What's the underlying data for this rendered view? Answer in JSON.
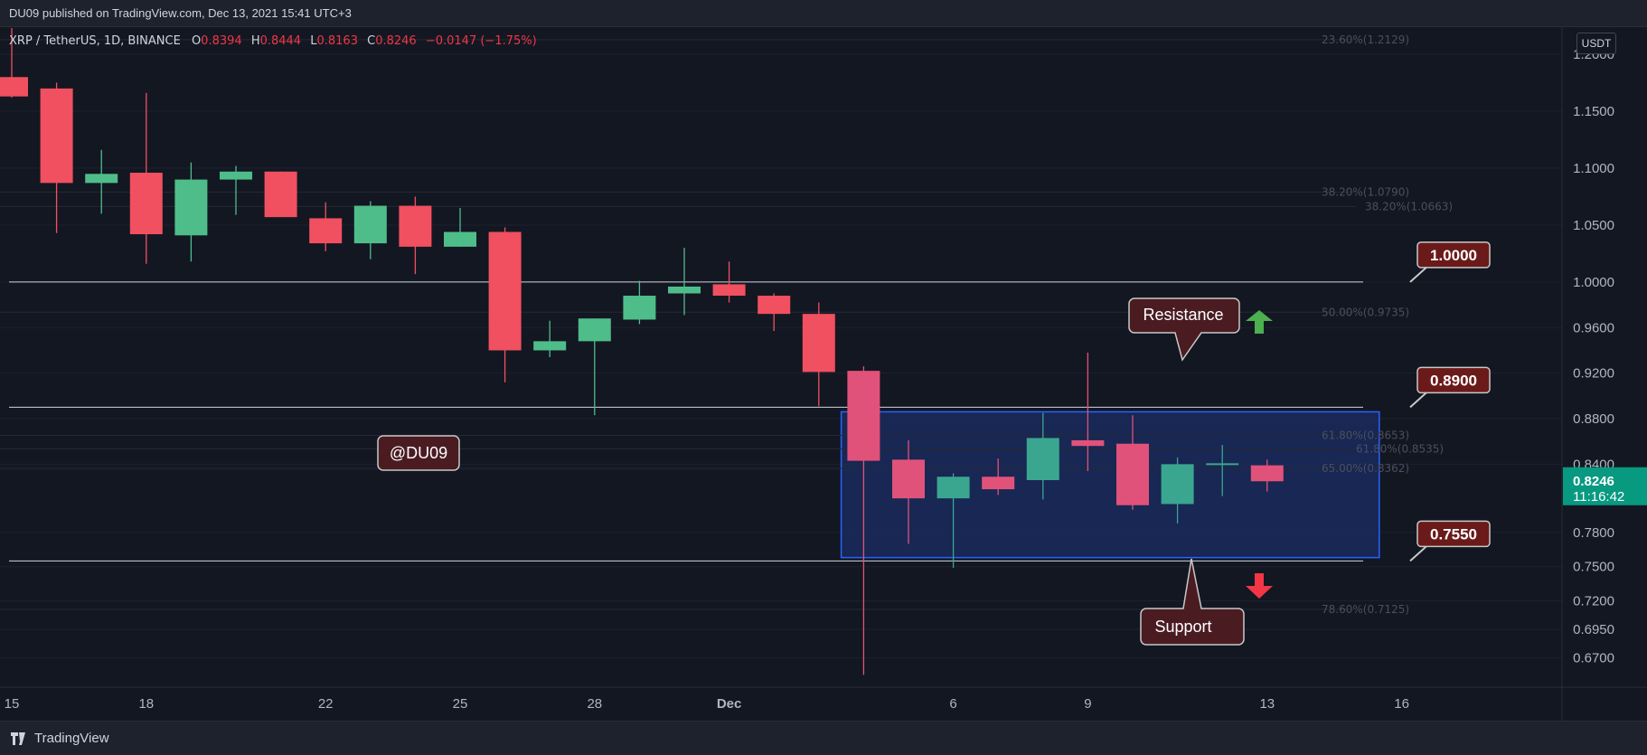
{
  "topbar": {
    "published": "DU09 published on TradingView.com, Dec 13, 2021 15:41 UTC+3"
  },
  "legend": {
    "symbol": "XRP / TetherUS, 1D, BINANCE",
    "o_label": "O",
    "o": "0.8394",
    "h_label": "H",
    "h": "0.8444",
    "l_label": "L",
    "l": "0.8163",
    "c_label": "C",
    "c": "0.8246",
    "change": "−0.0147 (−1.75%)"
  },
  "currency": "USDT",
  "footer": {
    "brand": "TradingView"
  },
  "last_price": {
    "price": "0.8246",
    "countdown": "11:16:42"
  },
  "watermark": "@DU09",
  "annotations": {
    "resistance": "Resistance",
    "support": "Support"
  },
  "chart_data": {
    "type": "candlestick",
    "ylim": [
      0.655,
      1.2
    ],
    "y_ticks": [
      "0.6700",
      "0.6950",
      "0.7200",
      "0.7500",
      "0.7800",
      "0.8400",
      "0.8800",
      "0.9200",
      "0.9600",
      "1.0000",
      "1.0500",
      "1.1000",
      "1.1500",
      "1.2000"
    ],
    "x_ticks": [
      {
        "label": "15",
        "idx": 0
      },
      {
        "label": "18",
        "idx": 3
      },
      {
        "label": "22",
        "idx": 7
      },
      {
        "label": "25",
        "idx": 10
      },
      {
        "label": "28",
        "idx": 13
      },
      {
        "label": "Dec",
        "idx": 16
      },
      {
        "label": "6",
        "idx": 21
      },
      {
        "label": "9",
        "idx": 24
      },
      {
        "label": "13",
        "idx": 28
      },
      {
        "label": "16",
        "idx": 31
      }
    ],
    "candles": [
      {
        "o": 1.18,
        "h": 1.223,
        "l": 1.162,
        "c": 1.163
      },
      {
        "o": 1.17,
        "h": 1.175,
        "l": 1.043,
        "c": 1.087
      },
      {
        "o": 1.087,
        "h": 1.116,
        "l": 1.06,
        "c": 1.095
      },
      {
        "o": 1.096,
        "h": 1.166,
        "l": 1.016,
        "c": 1.042
      },
      {
        "o": 1.041,
        "h": 1.105,
        "l": 1.018,
        "c": 1.09
      },
      {
        "o": 1.09,
        "h": 1.102,
        "l": 1.059,
        "c": 1.097
      },
      {
        "o": 1.097,
        "h": 1.097,
        "l": 1.057,
        "c": 1.057
      },
      {
        "o": 1.056,
        "h": 1.07,
        "l": 1.027,
        "c": 1.034
      },
      {
        "o": 1.034,
        "h": 1.071,
        "l": 1.02,
        "c": 1.067
      },
      {
        "o": 1.067,
        "h": 1.075,
        "l": 1.007,
        "c": 1.031
      },
      {
        "o": 1.031,
        "h": 1.065,
        "l": 1.031,
        "c": 1.044
      },
      {
        "o": 1.044,
        "h": 1.048,
        "l": 0.912,
        "c": 0.94
      },
      {
        "o": 0.94,
        "h": 0.966,
        "l": 0.934,
        "c": 0.948
      },
      {
        "o": 0.948,
        "h": 0.968,
        "l": 0.883,
        "c": 0.968
      },
      {
        "o": 0.967,
        "h": 1.001,
        "l": 0.963,
        "c": 0.988
      },
      {
        "o": 0.99,
        "h": 1.03,
        "l": 0.971,
        "c": 0.996
      },
      {
        "o": 0.998,
        "h": 1.018,
        "l": 0.982,
        "c": 0.988
      },
      {
        "o": 0.988,
        "h": 0.99,
        "l": 0.957,
        "c": 0.972
      },
      {
        "o": 0.972,
        "h": 0.982,
        "l": 0.891,
        "c": 0.921
      },
      {
        "o": 0.922,
        "h": 0.926,
        "l": 0.655,
        "c": 0.843
      },
      {
        "o": 0.844,
        "h": 0.861,
        "l": 0.77,
        "c": 0.81
      },
      {
        "o": 0.81,
        "h": 0.832,
        "l": 0.749,
        "c": 0.829
      },
      {
        "o": 0.829,
        "h": 0.845,
        "l": 0.813,
        "c": 0.818
      },
      {
        "o": 0.826,
        "h": 0.885,
        "l": 0.809,
        "c": 0.863
      },
      {
        "o": 0.861,
        "h": 0.938,
        "l": 0.834,
        "c": 0.856
      },
      {
        "o": 0.858,
        "h": 0.883,
        "l": 0.8,
        "c": 0.804
      },
      {
        "o": 0.805,
        "h": 0.846,
        "l": 0.788,
        "c": 0.84
      },
      {
        "o": 0.84,
        "h": 0.857,
        "l": 0.812,
        "c": 0.84
      },
      {
        "o": 0.839,
        "h": 0.844,
        "l": 0.816,
        "c": 0.825
      }
    ],
    "hlines": [
      1.0,
      0.89,
      0.755
    ],
    "box": {
      "x0": 18.5,
      "x1": 30.5,
      "y0": 0.886,
      "y1": 0.758
    },
    "level_labels": [
      "1.0000",
      "0.8900",
      "0.7550"
    ],
    "fib_levels": [
      {
        "label": "23.60%(1.2129)",
        "value": 1.2129
      },
      {
        "label": "38.20%(1.0790)",
        "value": 1.079
      },
      {
        "label": "38.20%(1.0663)",
        "value": 1.0663
      },
      {
        "label": "50.00%(0.9735)",
        "value": 0.9735
      },
      {
        "label": "61.80%(0.8653)",
        "value": 0.8653
      },
      {
        "label": "61.80%(0.8535)",
        "value": 0.8535
      },
      {
        "label": "65.00%(0.8362)",
        "value": 0.8362
      },
      {
        "label": "78.60%(0.7125)",
        "value": 0.7125
      }
    ]
  },
  "colors": {
    "up": "#26a69a",
    "down": "#ef5350",
    "up_bright": "#4fbd8a",
    "down_bright": "#f0505f",
    "box_fill": "#1a2a5c",
    "box_border": "#2962ff",
    "label_bg": "#6b1a1a",
    "label_border": "#c8c8c8",
    "price_tag": "#089981"
  }
}
